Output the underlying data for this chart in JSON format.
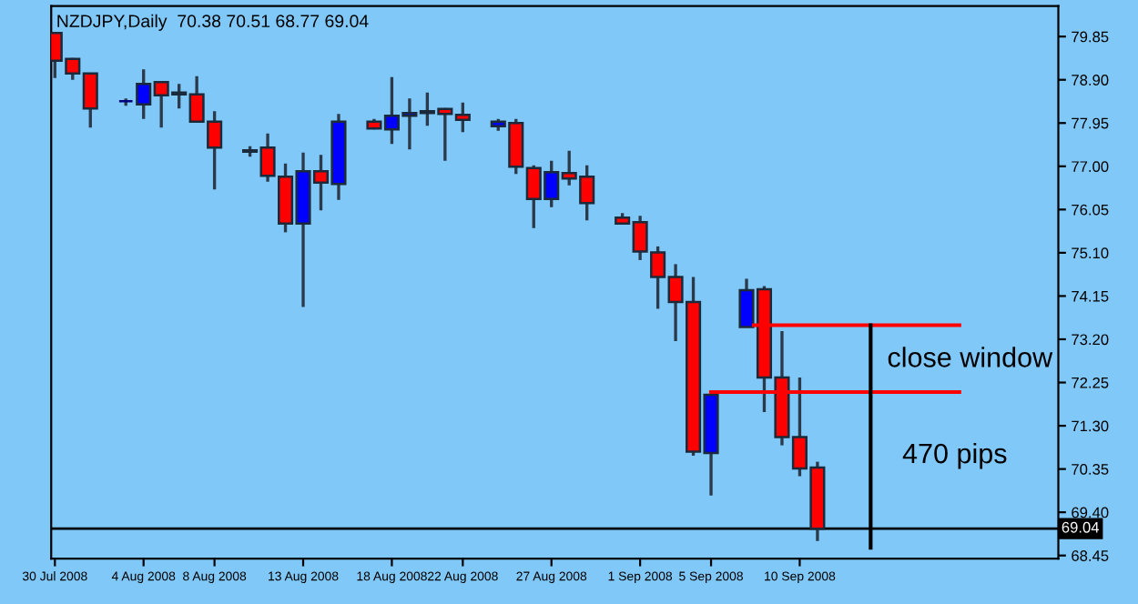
{
  "chart_data": {
    "type": "candlestick",
    "title": "NZDJPY,Daily  70.38 70.51 68.77 69.04",
    "x": [
      "2008-07-30",
      "2008-07-31",
      "2008-08-01",
      "2008-08-03",
      "2008-08-04",
      "2008-08-05",
      "2008-08-06",
      "2008-08-07",
      "2008-08-08",
      "2008-08-10",
      "2008-08-11",
      "2008-08-12",
      "2008-08-13",
      "2008-08-14",
      "2008-08-15",
      "2008-08-17",
      "2008-08-18",
      "2008-08-19",
      "2008-08-20",
      "2008-08-21",
      "2008-08-22",
      "2008-08-24",
      "2008-08-25",
      "2008-08-26",
      "2008-08-27",
      "2008-08-28",
      "2008-08-29",
      "2008-08-31",
      "2008-09-01",
      "2008-09-02",
      "2008-09-03",
      "2008-09-04",
      "2008-09-05",
      "2008-09-07",
      "2008-09-08",
      "2008-09-09",
      "2008-09-10",
      "2008-09-11"
    ],
    "ohlc": [
      [
        79.93,
        79.95,
        78.94,
        79.32
      ],
      [
        79.36,
        79.38,
        78.9,
        79.04
      ],
      [
        79.04,
        79.05,
        77.85,
        78.27
      ],
      [
        78.43,
        78.49,
        78.33,
        78.43
      ],
      [
        78.36,
        79.13,
        78.04,
        78.81
      ],
      [
        78.85,
        78.87,
        77.85,
        78.56
      ],
      [
        78.58,
        78.81,
        78.27,
        78.62
      ],
      [
        78.58,
        78.98,
        77.96,
        77.98
      ],
      [
        77.98,
        78.21,
        76.49,
        77.41
      ],
      [
        77.35,
        77.44,
        77.21,
        77.32
      ],
      [
        77.41,
        77.72,
        76.66,
        76.79
      ],
      [
        76.77,
        77.06,
        75.55,
        75.74
      ],
      [
        75.74,
        77.3,
        73.91,
        76.89
      ],
      [
        76.89,
        77.25,
        76.03,
        76.64
      ],
      [
        76.61,
        78.15,
        76.26,
        77.98
      ],
      [
        77.98,
        78.04,
        77.81,
        77.83
      ],
      [
        77.81,
        78.96,
        77.49,
        78.11
      ],
      [
        78.11,
        78.49,
        77.37,
        78.17
      ],
      [
        78.17,
        78.62,
        77.89,
        78.21
      ],
      [
        78.26,
        78.28,
        77.12,
        78.15
      ],
      [
        78.13,
        78.4,
        77.75,
        78.02
      ],
      [
        77.88,
        78.04,
        77.78,
        77.98
      ],
      [
        77.95,
        78.04,
        76.83,
        76.99
      ],
      [
        76.96,
        77.02,
        75.64,
        76.28
      ],
      [
        76.28,
        77.12,
        76.1,
        76.87
      ],
      [
        76.85,
        77.34,
        76.58,
        76.73
      ],
      [
        76.77,
        77.02,
        75.81,
        76.19
      ],
      [
        75.87,
        75.97,
        75.72,
        75.74
      ],
      [
        75.77,
        75.91,
        74.94,
        75.13
      ],
      [
        75.11,
        75.24,
        73.87,
        74.57
      ],
      [
        74.57,
        74.85,
        73.16,
        74.02
      ],
      [
        74.02,
        74.57,
        70.64,
        70.73
      ],
      [
        70.7,
        72.0,
        69.77,
        71.98
      ],
      [
        73.47,
        74.53,
        73.47,
        74.28
      ],
      [
        74.3,
        74.37,
        71.6,
        72.36
      ],
      [
        72.36,
        73.38,
        70.87,
        71.05
      ],
      [
        71.05,
        72.36,
        70.19,
        70.36
      ],
      [
        70.38,
        70.51,
        68.77,
        69.04
      ]
    ],
    "colors": [
      "#ff0000",
      "#ff0000",
      "#ff0000",
      "#000080",
      "#0000ff",
      "#ff0000",
      "#000080",
      "#ff0000",
      "#ff0000",
      "#000080",
      "#ff0000",
      "#ff0000",
      "#0000ff",
      "#ff0000",
      "#0000ff",
      "#ff0000",
      "#0000ff",
      "#0000ff",
      "#0000ff",
      "#ff0000",
      "#ff0000",
      "#0000ff",
      "#ff0000",
      "#ff0000",
      "#0000ff",
      "#ff0000",
      "#ff0000",
      "#ff0000",
      "#ff0000",
      "#ff0000",
      "#ff0000",
      "#ff0000",
      "#0000ff",
      "#0000ff",
      "#ff0000",
      "#ff0000",
      "#ff0000",
      "#ff0000"
    ],
    "series": [
      {
        "type": "line",
        "color": "#ff0000",
        "x": [
          "2008-09-07T10:00",
          "2008-09-19"
        ],
        "values": [
          73.51,
          73.51
        ]
      },
      {
        "type": "line",
        "color": "#ff0000",
        "x": [
          "2008-09-05",
          "2008-09-19"
        ],
        "values": [
          72.04,
          72.04
        ]
      },
      {
        "type": "line",
        "color": "#000000",
        "x": [
          "2008-09-14",
          "2008-09-14"
        ],
        "values": [
          73.51,
          68.62
        ]
      }
    ],
    "ref_lines": [
      {
        "axis": "y",
        "value": 69.04,
        "label": "69.04",
        "color": "#000000"
      }
    ],
    "annotations": [
      "close window",
      "470 pips"
    ],
    "xlim": [
      "2008-07-29T19:00",
      "2008-09-24T14:00"
    ],
    "xticks": [
      {
        "value": "2008-07-30",
        "label": "30 Jul 2008"
      },
      {
        "value": "2008-08-04",
        "label": "4 Aug 2008"
      },
      {
        "value": "2008-08-08",
        "label": "8 Aug 2008"
      },
      {
        "value": "2008-08-13",
        "label": "13 Aug 2008"
      },
      {
        "value": "2008-08-18",
        "label": "18 Aug 2008"
      },
      {
        "value": "2008-08-22",
        "label": "22 Aug 2008"
      },
      {
        "value": "2008-08-27",
        "label": "27 Aug 2008"
      },
      {
        "value": "2008-09-01",
        "label": "1 Sep 2008"
      },
      {
        "value": "2008-09-05",
        "label": "5 Sep 2008"
      },
      {
        "value": "2008-09-10",
        "label": "10 Sep 2008"
      }
    ],
    "ylim": [
      68.38,
      80.52
    ],
    "yticks": [
      79.85,
      {
        "value": 78.9,
        "label": "78.90"
      },
      77.95,
      {
        "value": 77.0,
        "label": "77.00"
      },
      76.05,
      {
        "value": 75.1,
        "label": "75.10"
      },
      74.15,
      {
        "value": 73.2,
        "label": "73.20"
      },
      72.25,
      {
        "value": 71.3,
        "label": "71.30"
      },
      70.35,
      {
        "value": 69.4,
        "label": "69.40"
      },
      68.45
    ],
    "grid": false
  }
}
